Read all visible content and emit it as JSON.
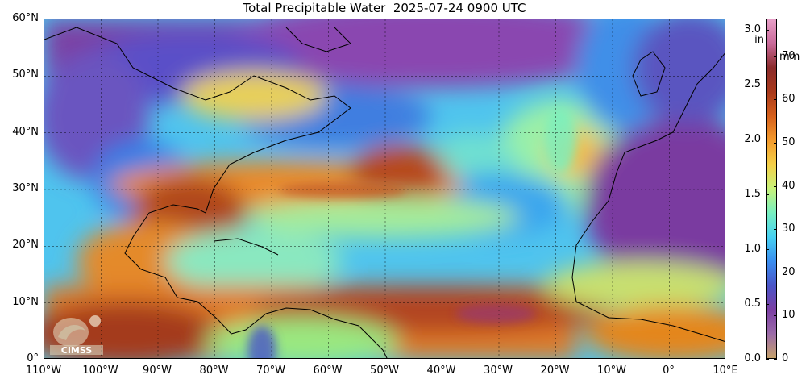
{
  "title": "Total Precipitable Water  2025-07-24 0900 UTC",
  "lat_labels": [
    "60°N",
    "50°N",
    "40°N",
    "30°N",
    "20°N",
    "10°N",
    "0°"
  ],
  "lon_labels": [
    "110°W",
    "100°W",
    "90°W",
    "80°W",
    "70°W",
    "60°W",
    "50°W",
    "40°W",
    "30°W",
    "20°W",
    "10°W",
    "0°",
    "10°E"
  ],
  "colorbar": {
    "unit_in": "in",
    "unit_mm": "mm",
    "in_ticks": [
      "3.0",
      "2.5",
      "2.0",
      "1.5",
      "1.0",
      "0.5",
      "0.0"
    ],
    "mm_ticks": [
      "70",
      "60",
      "50",
      "40",
      "30",
      "20",
      "10",
      "0"
    ],
    "in_max": 3.1,
    "mm_max": 78.7,
    "colors": [
      "#c5a16b",
      "#9b6ba8",
      "#7b3fa3",
      "#4a55c8",
      "#3a8ef0",
      "#47d1f2",
      "#78f0c0",
      "#c8f27a",
      "#f5d048",
      "#f39a2c",
      "#d6601c",
      "#a8391b",
      "#8a2b2b",
      "#c96a9a",
      "#e8a0c8"
    ]
  },
  "logo_text": "CIMSS",
  "map": {
    "lon_range": [
      -110,
      10
    ],
    "lat_range": [
      0,
      60
    ],
    "colors": {
      "dry": "#7b3fa3",
      "moist": "#d6601c",
      "ocean_mid": "#47b8f0",
      "humid": "#f39a2c",
      "very_humid": "#a8391b",
      "mid": "#8ee6c8"
    }
  }
}
